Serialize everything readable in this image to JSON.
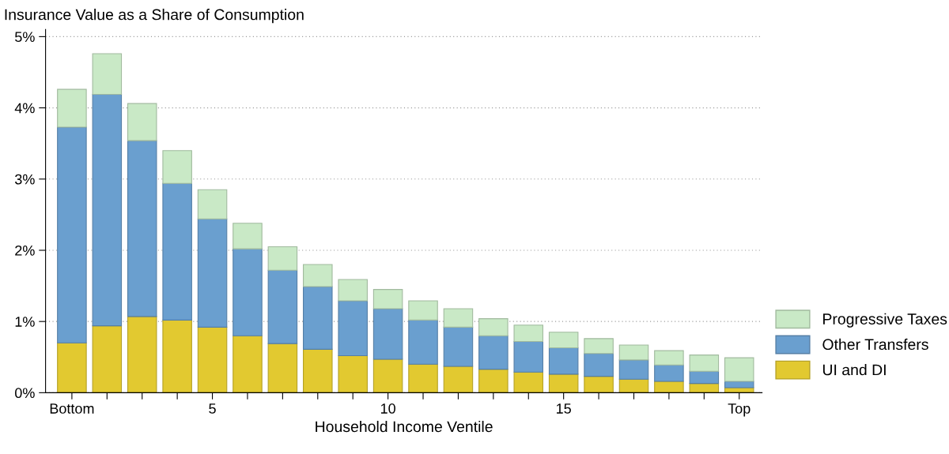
{
  "chart_data": {
    "type": "bar",
    "stacked": true,
    "title": "Insurance Value as a Share of Consumption",
    "xlabel": "Household Income Ventile",
    "categories": [
      "Bottom",
      null,
      null,
      null,
      "5",
      null,
      null,
      null,
      null,
      "10",
      null,
      null,
      null,
      null,
      "15",
      null,
      null,
      null,
      null,
      "Top"
    ],
    "series": [
      {
        "name": "UI and DI",
        "color": "#e2c930",
        "values": [
          0.7,
          0.94,
          1.07,
          1.02,
          0.92,
          0.8,
          0.69,
          0.61,
          0.52,
          0.47,
          0.4,
          0.37,
          0.33,
          0.29,
          0.26,
          0.23,
          0.19,
          0.16,
          0.13,
          0.07
        ]
      },
      {
        "name": "Other Transfers",
        "color": "#6a9fcf",
        "values": [
          3.03,
          3.25,
          2.47,
          1.92,
          1.52,
          1.22,
          1.03,
          0.88,
          0.77,
          0.71,
          0.62,
          0.55,
          0.47,
          0.43,
          0.37,
          0.32,
          0.27,
          0.23,
          0.17,
          0.09
        ]
      },
      {
        "name": "Progressive Taxes",
        "color": "#c9e9c6",
        "values": [
          0.53,
          0.57,
          0.52,
          0.46,
          0.41,
          0.36,
          0.33,
          0.31,
          0.3,
          0.27,
          0.27,
          0.26,
          0.24,
          0.23,
          0.22,
          0.21,
          0.21,
          0.2,
          0.23,
          0.33
        ]
      }
    ],
    "ylim": [
      0,
      5.1
    ],
    "yticks": [
      {
        "value": 0,
        "label": "0%"
      },
      {
        "value": 1,
        "label": "1%"
      },
      {
        "value": 2,
        "label": "2%"
      },
      {
        "value": 3,
        "label": "3%"
      },
      {
        "value": 4,
        "label": "4%"
      },
      {
        "value": 5,
        "label": "5%"
      }
    ],
    "grid": "y",
    "legend": "right"
  }
}
